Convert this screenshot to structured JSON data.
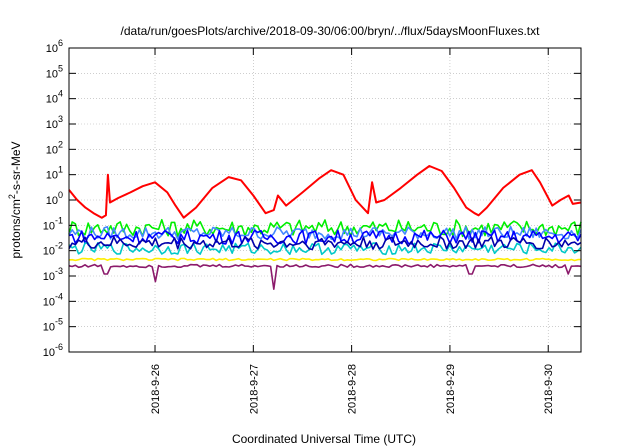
{
  "chart_data": {
    "type": "line",
    "title": "/data/run/goesPlots/archive/2018-09-30/06:00/bryn/../flux/5daysMoonFluxes.txt",
    "xlabel": "Coordinated Universal Time (UTC)",
    "ylabel": {
      "prefix": "protons/cm",
      "sup": "2",
      "suffix": "-s-sr-MeV"
    },
    "yscale": "log",
    "ylim": [
      1e-06,
      1000000.0
    ],
    "xlim": [
      "2018-09-25T03:00",
      "2018-09-30T08:00"
    ],
    "x_ticks": [
      "2018-9-26",
      "2018-9-27",
      "2018-9-28",
      "2018-9-29",
      "2018-9-30"
    ],
    "y_tick_exponents": [
      "-6",
      "-5",
      "-4",
      "-3",
      "-2",
      "-1",
      "0",
      "1",
      "2",
      "3",
      "4",
      "5",
      "6"
    ],
    "grid": true,
    "series": [
      {
        "color": "#ff0000",
        "x": [
          "2018-09-25T03:00",
          "2018-09-25T05:00",
          "2018-09-25T07:00",
          "2018-09-25T09:00",
          "2018-09-25T11:00",
          "2018-09-25T12:00",
          "2018-09-25T12:30",
          "2018-09-25T13:00",
          "2018-09-25T15:00",
          "2018-09-25T18:00",
          "2018-09-25T21:00",
          "2018-09-26T00:00",
          "2018-09-26T03:00",
          "2018-09-26T05:00",
          "2018-09-26T07:00",
          "2018-09-26T10:00",
          "2018-09-26T14:00",
          "2018-09-26T18:00",
          "2018-09-26T21:00",
          "2018-09-27T00:00",
          "2018-09-27T03:00",
          "2018-09-27T05:00",
          "2018-09-27T06:00",
          "2018-09-27T08:00",
          "2018-09-27T12:00",
          "2018-09-27T16:00",
          "2018-09-27T19:00",
          "2018-09-27T22:00",
          "2018-09-28T01:00",
          "2018-09-28T04:00",
          "2018-09-28T05:00",
          "2018-09-28T06:00",
          "2018-09-28T08:00",
          "2018-09-28T12:00",
          "2018-09-28T16:00",
          "2018-09-28T19:00",
          "2018-09-28T22:00",
          "2018-09-29T01:00",
          "2018-09-29T04:00",
          "2018-09-29T06:00",
          "2018-09-29T07:00",
          "2018-09-29T09:00",
          "2018-09-29T13:00",
          "2018-09-29T17:00",
          "2018-09-29T20:00",
          "2018-09-29T22:00",
          "2018-09-30T01:00",
          "2018-09-30T03:00",
          "2018-09-30T05:00",
          "2018-09-30T06:00",
          "2018-09-30T08:00"
        ],
        "y": [
          2.5,
          1.0,
          0.5,
          0.3,
          0.2,
          0.25,
          10,
          0.8,
          1.2,
          2.0,
          3.5,
          5.0,
          2.0,
          0.6,
          0.2,
          0.5,
          3.0,
          8.0,
          6.0,
          1.5,
          0.3,
          0.4,
          1.5,
          0.6,
          2.0,
          7.0,
          15.0,
          10.0,
          1.0,
          0.3,
          5.0,
          0.8,
          1.0,
          3.0,
          10.0,
          22.0,
          14.0,
          3.0,
          0.5,
          0.3,
          0.25,
          0.5,
          3.0,
          10.0,
          15.0,
          5.0,
          0.6,
          1.0,
          1.5,
          0.7,
          0.8
        ]
      },
      {
        "color": "#00ee00",
        "base": 0.08,
        "spread": 2.2
      },
      {
        "color": "#4488ff",
        "base": 0.05,
        "spread": 1.8
      },
      {
        "color": "#0000ff",
        "base": 0.035,
        "spread": 1.9
      },
      {
        "color": "#00c8c8",
        "base": 0.012,
        "spread": 1.7
      },
      {
        "color": "#0000aa",
        "base": 0.02,
        "spread": 1.8
      },
      {
        "color": "#ffee00",
        "base": 0.0045,
        "spread": 1.1
      },
      {
        "color": "#8b1a6b",
        "base": 0.0025,
        "spread": 1.15,
        "dips": [
          {
            "x": "2018-09-25T12:00",
            "y": 0.0012
          },
          {
            "x": "2018-09-26T00:00",
            "y": 0.0006
          },
          {
            "x": "2018-09-27T05:00",
            "y": 0.0003
          },
          {
            "x": "2018-09-29T05:00",
            "y": 0.0012
          },
          {
            "x": "2018-09-30T05:00",
            "y": 0.0012
          }
        ]
      }
    ]
  }
}
